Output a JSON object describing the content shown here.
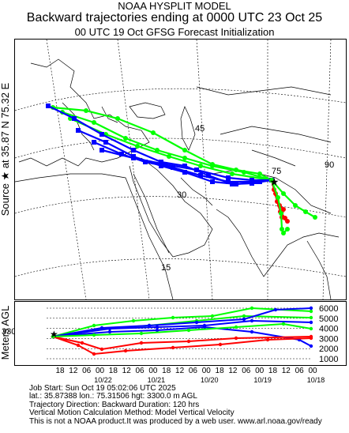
{
  "header": {
    "line1": "NOAA HYSPLIT MODEL",
    "line2": "Backward trajectories ending at 0000 UTC 23 Oct 25",
    "line3": "00 UTC 19 Oct    GFSG  Forecast Initialization"
  },
  "side_label": "Source ★ at    35.87 N    75.32 E",
  "height_axis_label": "Meters AGL",
  "source_height_label": "3300",
  "map": {
    "lat_labels": [
      "45",
      "30",
      "15"
    ],
    "lon_labels": [
      "90",
      "75"
    ],
    "source_symbol": "★",
    "source": {
      "lat": 35.87,
      "lon": 75.32
    },
    "colors": {
      "red": "#ff0000",
      "blue": "#0000ff",
      "green": "#00ff00",
      "coast": "#000000"
    }
  },
  "vertical": {
    "height_ticks": [
      "6000",
      "5000",
      "4000",
      "3000",
      "2000",
      "1000"
    ],
    "height_values": [
      6000,
      5000,
      4000,
      3000,
      2000,
      1000
    ]
  },
  "time_axis": {
    "hour_labels": [
      "18",
      "12",
      "06",
      "00",
      "18",
      "12",
      "06",
      "00",
      "18",
      "12",
      "06",
      "00",
      "18",
      "12",
      "06",
      "00",
      "18",
      "12",
      "06",
      "00"
    ],
    "date_labels": [
      "10/22",
      "10/21",
      "10/20",
      "10/19",
      "10/18"
    ]
  },
  "footer": {
    "line1": "Job Start: Sun Oct 19 05:02:06 UTC 2025",
    "line2": "lat.: 35.87388   lon.: 75.31506   hgt: 3300.0 m AGL",
    "line3": "Trajectory Direction: Backward       Duration: 120 hrs",
    "line4": "Vertical Motion Calculation Method: Model Vertical Velocity",
    "line5": "This is not a NOAA product.It was produced by a web user. www.arl.noaa.gov/ready"
  }
}
